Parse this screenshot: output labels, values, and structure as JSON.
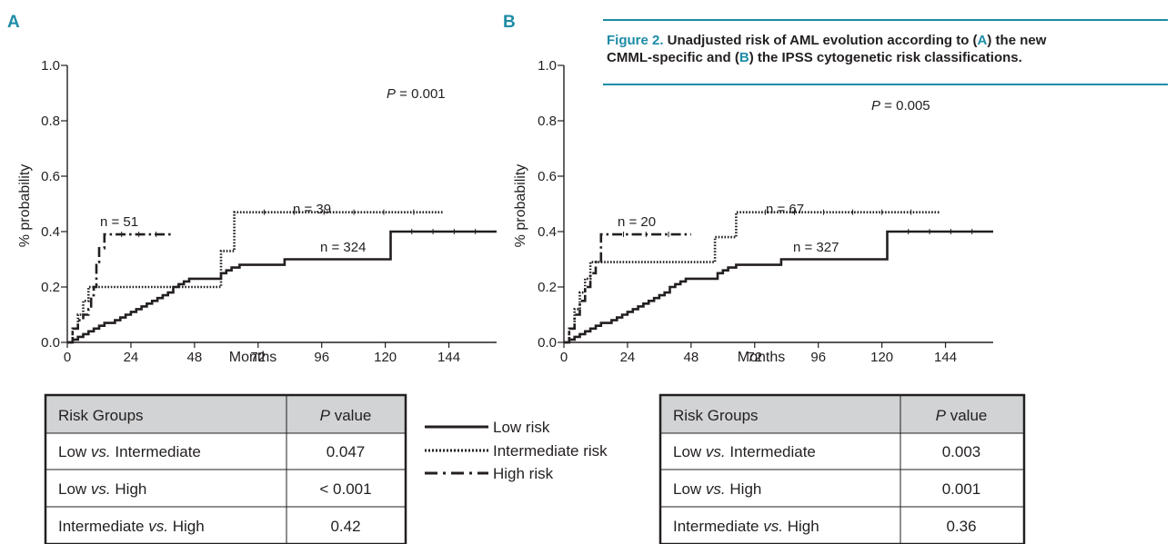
{
  "caption": {
    "lead": "Figure 2.",
    "line1_a": " Unadjusted risk of AML evolution according to (",
    "line1_b": "A",
    "line1_c": ") the new",
    "line2_a": "CMML-specific and (",
    "line2_b": "B",
    "line2_c": ") the IPSS cytogenetic risk classifications."
  },
  "legend": [
    {
      "label": "Low risk",
      "style": "solid"
    },
    {
      "label": "Intermediate risk",
      "style": "dotted"
    },
    {
      "label": "High risk",
      "style": "dashdot"
    }
  ],
  "colors": {
    "accent": "#1d8ca6",
    "ink": "#231f20"
  },
  "chart_data": [
    {
      "panel": "A",
      "type": "line",
      "step": true,
      "xlabel": "Months",
      "ylabel": "% probability",
      "xticks": [
        0,
        24,
        48,
        72,
        96,
        120,
        144
      ],
      "yticks": [
        "0.0",
        "0.2",
        "0.4",
        "0.6",
        "0.8",
        "1.0"
      ],
      "xlim": [
        0,
        162
      ],
      "ylim": [
        0,
        1.0
      ],
      "pvalue": {
        "label": "P",
        "value": "= 0.001"
      },
      "series": [
        {
          "name": "Low risk",
          "style": "solid",
          "n_label": "n = 324",
          "points": [
            [
              0,
              0
            ],
            [
              2,
              0.01
            ],
            [
              4,
              0.02
            ],
            [
              6,
              0.03
            ],
            [
              8,
              0.04
            ],
            [
              10,
              0.05
            ],
            [
              12,
              0.06
            ],
            [
              14,
              0.07
            ],
            [
              18,
              0.08
            ],
            [
              20,
              0.09
            ],
            [
              22,
              0.1
            ],
            [
              24,
              0.11
            ],
            [
              26,
              0.12
            ],
            [
              28,
              0.13
            ],
            [
              30,
              0.14
            ],
            [
              32,
              0.15
            ],
            [
              34,
              0.16
            ],
            [
              36,
              0.17
            ],
            [
              38,
              0.18
            ],
            [
              40,
              0.2
            ],
            [
              42,
              0.21
            ],
            [
              44,
              0.22
            ],
            [
              46,
              0.23
            ],
            [
              56,
              0.23
            ],
            [
              58,
              0.25
            ],
            [
              60,
              0.26
            ],
            [
              62,
              0.27
            ],
            [
              65,
              0.28
            ],
            [
              82,
              0.3
            ],
            [
              122,
              0.3
            ],
            [
              122,
              0.4
            ],
            [
              162,
              0.4
            ]
          ]
        },
        {
          "name": "Intermediate risk",
          "style": "dotted",
          "n_label": "n = 39",
          "points": [
            [
              0,
              0
            ],
            [
              2,
              0.05
            ],
            [
              4,
              0.1
            ],
            [
              6,
              0.15
            ],
            [
              8,
              0.2
            ],
            [
              58,
              0.2
            ],
            [
              58,
              0.33
            ],
            [
              63,
              0.33
            ],
            [
              63,
              0.47
            ],
            [
              142,
              0.47
            ]
          ]
        },
        {
          "name": "High risk",
          "style": "dashdot",
          "n_label": "n = 51",
          "points": [
            [
              0,
              0
            ],
            [
              2,
              0.05
            ],
            [
              4,
              0.08
            ],
            [
              6,
              0.1
            ],
            [
              8,
              0.12
            ],
            [
              9,
              0.17
            ],
            [
              10,
              0.2
            ],
            [
              11,
              0.29
            ],
            [
              12,
              0.34
            ],
            [
              14,
              0.39
            ],
            [
              40,
              0.39
            ]
          ]
        }
      ],
      "table": {
        "headers": [
          "Risk Groups",
          "P value"
        ],
        "rows": [
          {
            "a": "Low",
            "vs": "vs.",
            "b": "Intermediate",
            "p": "0.047"
          },
          {
            "a": "Low",
            "vs": "vs.",
            "b": "High",
            "p": "< 0.001"
          },
          {
            "a": "Intermediate",
            "vs": "vs.",
            "b": "High",
            "p": "0.42"
          }
        ]
      }
    },
    {
      "panel": "B",
      "type": "line",
      "step": true,
      "xlabel": "Months",
      "ylabel": "% probability",
      "xticks": [
        0,
        24,
        48,
        72,
        96,
        120,
        144
      ],
      "yticks": [
        "0.0",
        "0.2",
        "0.4",
        "0.6",
        "0.8",
        "1.0"
      ],
      "xlim": [
        0,
        162
      ],
      "ylim": [
        0,
        1.0
      ],
      "pvalue": {
        "label": "P",
        "value": "= 0.005"
      },
      "series": [
        {
          "name": "Low risk",
          "style": "solid",
          "n_label": "n = 327",
          "points": [
            [
              0,
              0
            ],
            [
              2,
              0.01
            ],
            [
              4,
              0.02
            ],
            [
              6,
              0.03
            ],
            [
              8,
              0.04
            ],
            [
              10,
              0.05
            ],
            [
              12,
              0.06
            ],
            [
              14,
              0.07
            ],
            [
              18,
              0.08
            ],
            [
              20,
              0.09
            ],
            [
              22,
              0.1
            ],
            [
              24,
              0.11
            ],
            [
              26,
              0.12
            ],
            [
              28,
              0.13
            ],
            [
              30,
              0.14
            ],
            [
              32,
              0.15
            ],
            [
              34,
              0.16
            ],
            [
              36,
              0.17
            ],
            [
              38,
              0.18
            ],
            [
              40,
              0.2
            ],
            [
              42,
              0.21
            ],
            [
              44,
              0.22
            ],
            [
              46,
              0.23
            ],
            [
              56,
              0.23
            ],
            [
              58,
              0.25
            ],
            [
              60,
              0.26
            ],
            [
              62,
              0.27
            ],
            [
              65,
              0.28
            ],
            [
              82,
              0.3
            ],
            [
              122,
              0.3
            ],
            [
              122,
              0.4
            ],
            [
              162,
              0.4
            ]
          ]
        },
        {
          "name": "Intermediate risk",
          "style": "dotted",
          "n_label": "n = 67",
          "points": [
            [
              0,
              0
            ],
            [
              2,
              0.05
            ],
            [
              4,
              0.12
            ],
            [
              6,
              0.18
            ],
            [
              8,
              0.23
            ],
            [
              10,
              0.29
            ],
            [
              57,
              0.29
            ],
            [
              57,
              0.38
            ],
            [
              65,
              0.38
            ],
            [
              65,
              0.47
            ],
            [
              142,
              0.47
            ]
          ]
        },
        {
          "name": "High risk",
          "style": "dashdot",
          "n_label": "n = 20",
          "points": [
            [
              0,
              0
            ],
            [
              2,
              0.05
            ],
            [
              4,
              0.1
            ],
            [
              6,
              0.15
            ],
            [
              8,
              0.2
            ],
            [
              10,
              0.25
            ],
            [
              12,
              0.29
            ],
            [
              14,
              0.39
            ],
            [
              48,
              0.39
            ]
          ]
        }
      ],
      "table": {
        "headers": [
          "Risk Groups",
          "P value"
        ],
        "rows": [
          {
            "a": "Low",
            "vs": "vs.",
            "b": "Intermediate",
            "p": "0.003"
          },
          {
            "a": "Low",
            "vs": "vs.",
            "b": "High",
            "p": "0.001"
          },
          {
            "a": "Intermediate",
            "vs": "vs.",
            "b": "High",
            "p": "0.36"
          }
        ]
      }
    }
  ]
}
